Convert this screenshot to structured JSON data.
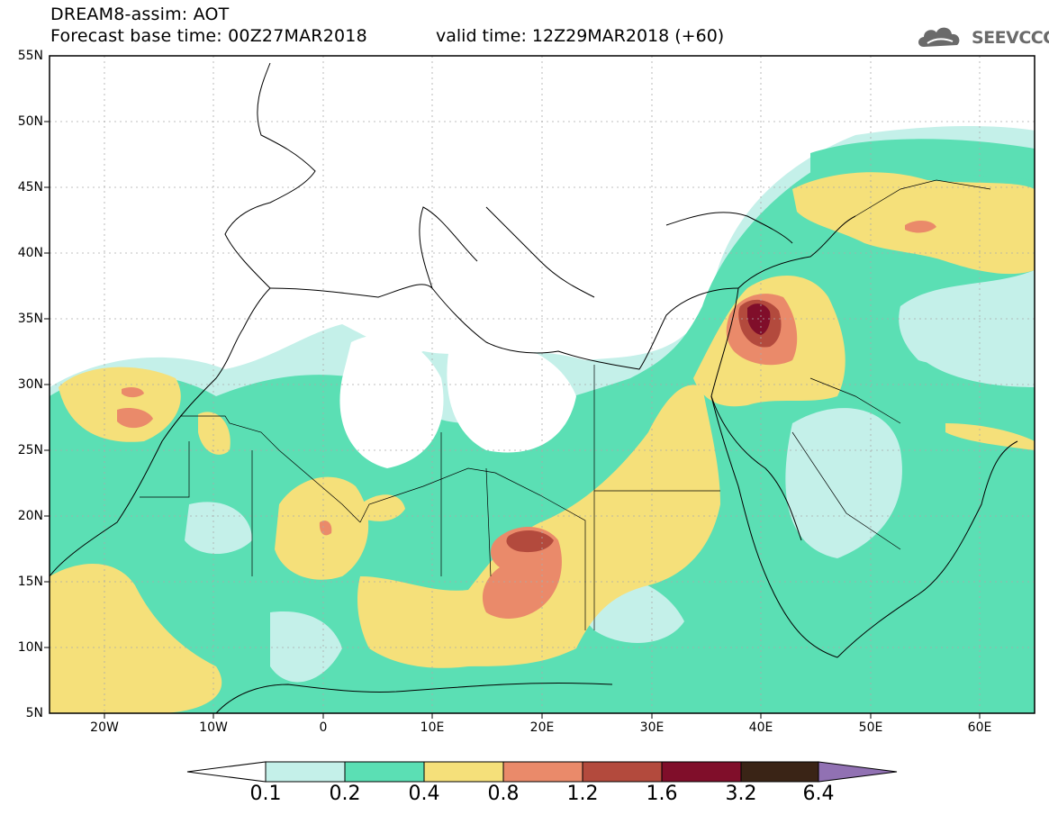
{
  "header": {
    "title": "DREAM8-assim: AOT",
    "base_time": "Forecast base time: 00Z27MAR2018",
    "valid_time": "valid time: 12Z29MAR2018 (+60)",
    "logo_text": "SEEVCCC"
  },
  "map": {
    "lon_range": [
      -25,
      65
    ],
    "lat_range": [
      5,
      55
    ],
    "lat_labels": [
      "55N",
      "50N",
      "45N",
      "40N",
      "35N",
      "30N",
      "25N",
      "20N",
      "15N",
      "10N",
      "5N"
    ],
    "lon_labels": [
      "20W",
      "10W",
      "0",
      "10E",
      "20E",
      "30E",
      "40E",
      "50E",
      "60E"
    ]
  },
  "colorbar": {
    "labels": [
      "0.1",
      "0.2",
      "0.4",
      "0.8",
      "1.2",
      "1.6",
      "3.2",
      "6.4"
    ],
    "colors": [
      "#c4f0e9",
      "#5bdfb4",
      "#f5e07a",
      "#ea8a6a",
      "#b34a3d",
      "#800e2a",
      "#3a2416",
      "#9171b3"
    ]
  }
}
